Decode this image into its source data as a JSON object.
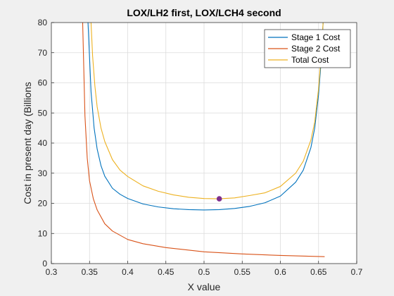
{
  "chart_data": {
    "type": "line",
    "title": "LOX/LH2 first, LOX/LCH4 second",
    "xlabel": "X value",
    "ylabel": "Cost in present day (Billions",
    "xlim": [
      0.3,
      0.7
    ],
    "ylim": [
      0,
      80
    ],
    "xticks": [
      "0.3",
      "0.35",
      "0.4",
      "0.45",
      "0.5",
      "0.55",
      "0.6",
      "0.65",
      "0.7"
    ],
    "yticks": [
      "0",
      "10",
      "20",
      "30",
      "40",
      "50",
      "60",
      "70",
      "80"
    ],
    "grid": true,
    "legend_position": "top-right",
    "series": [
      {
        "name": "Stage 1 Cost",
        "color": "#0072BD",
        "x": [
          0.348,
          0.352,
          0.356,
          0.36,
          0.365,
          0.37,
          0.38,
          0.39,
          0.4,
          0.42,
          0.44,
          0.46,
          0.48,
          0.5,
          0.52,
          0.54,
          0.56,
          0.58,
          0.6,
          0.62,
          0.63,
          0.64,
          0.645,
          0.65,
          0.653,
          0.656
        ],
        "y": [
          80,
          57,
          45,
          38,
          32.5,
          29,
          25,
          23,
          21.6,
          19.8,
          18.8,
          18.2,
          17.9,
          17.8,
          17.9,
          18.3,
          19.0,
          20.2,
          22.4,
          27,
          31,
          38.5,
          45,
          56,
          66,
          80
        ]
      },
      {
        "name": "Stage 2 Cost",
        "color": "#D95319",
        "x": [
          0.341,
          0.344,
          0.347,
          0.35,
          0.355,
          0.36,
          0.37,
          0.38,
          0.4,
          0.42,
          0.45,
          0.5,
          0.55,
          0.6,
          0.658
        ],
        "y": [
          80,
          49,
          35,
          27.5,
          21.5,
          17.8,
          13.2,
          10.8,
          8.0,
          6.6,
          5.3,
          3.9,
          3.2,
          2.7,
          2.3
        ]
      },
      {
        "name": "Total Cost",
        "color": "#EDB120",
        "x": [
          0.352,
          0.354,
          0.357,
          0.36,
          0.365,
          0.37,
          0.38,
          0.39,
          0.4,
          0.42,
          0.44,
          0.46,
          0.48,
          0.5,
          0.52,
          0.54,
          0.56,
          0.58,
          0.6,
          0.62,
          0.63,
          0.64,
          0.645,
          0.65,
          0.653,
          0.656
        ],
        "y": [
          80,
          69,
          59,
          52,
          45,
          40.5,
          34.5,
          31,
          28.9,
          25.8,
          24,
          22.8,
          22,
          21.6,
          21.5,
          21.8,
          22.6,
          23.5,
          25.6,
          30,
          34,
          41,
          47,
          58,
          68,
          80
        ]
      }
    ],
    "marker": {
      "x": 0.52,
      "y": 21.5,
      "color": "#7E2F8E"
    }
  }
}
